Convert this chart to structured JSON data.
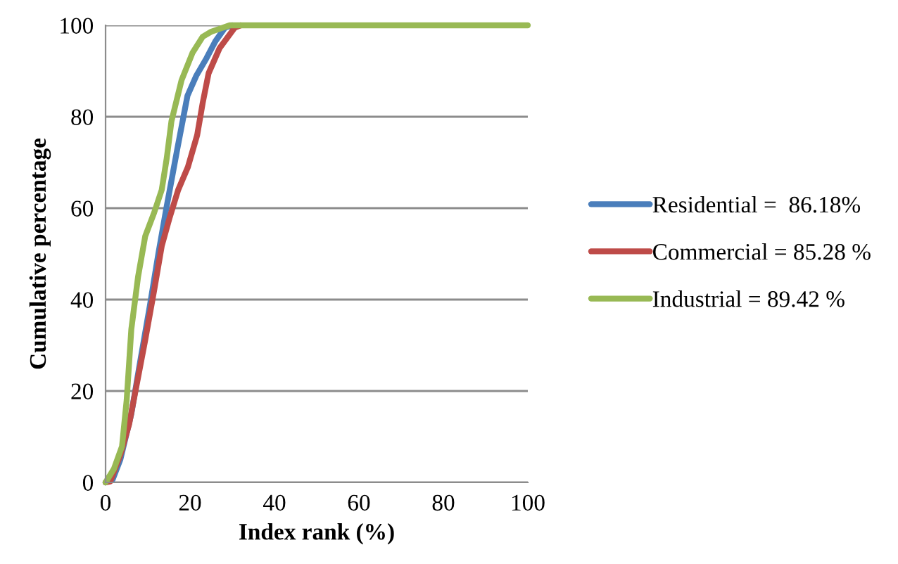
{
  "chart_data": {
    "type": "line",
    "xlabel": "Index rank (%)",
    "ylabel": "Cumulative percentage",
    "xlim": [
      0,
      100
    ],
    "xticks": [
      0,
      20,
      40,
      60,
      80,
      100
    ],
    "ylim": [
      0,
      100
    ],
    "yticks": [
      0,
      20,
      40,
      60,
      80,
      100
    ],
    "grid": "y",
    "legend": "right",
    "marker": "none",
    "line_style": "solid",
    "series": [
      {
        "name": "Residential =  86.18%",
        "color": "#4a7ebb",
        "x": [
          0,
          1.7,
          3.5,
          6.1,
          8.3,
          10.5,
          12.5,
          14.4,
          17,
          19.4,
          21.5,
          23.9,
          26,
          28.3,
          30
        ],
        "values": [
          0,
          0.7,
          5,
          15,
          27,
          38.7,
          50,
          60,
          73,
          84.6,
          89,
          92.8,
          96.5,
          99.5,
          100
        ]
      },
      {
        "name": "Commercial = 85.28 %",
        "color": "#be4b48",
        "x": [
          0,
          1.1,
          3.5,
          5.6,
          7.5,
          9.4,
          11.5,
          13.3,
          15.2,
          17.2,
          19.5,
          21.7,
          23,
          24.4,
          27,
          30.6,
          32
        ],
        "values": [
          0,
          0.2,
          6,
          12.8,
          22,
          31.2,
          42,
          51.7,
          58,
          64,
          69,
          76,
          83,
          89.5,
          95,
          99.5,
          100
        ]
      },
      {
        "name": "Industrial = 89.42 %",
        "color": "#98b954",
        "x": [
          0,
          2,
          3.9,
          5,
          6.1,
          7.7,
          9.4,
          11.5,
          13.3,
          14.5,
          15.6,
          18,
          20.6,
          23,
          25,
          29.4,
          40,
          60,
          80,
          100
        ],
        "values": [
          0,
          3,
          7.9,
          18,
          33.5,
          45,
          53.9,
          59,
          64,
          71,
          79,
          88,
          94,
          97.5,
          98.6,
          100,
          100,
          100,
          100,
          100
        ]
      }
    ]
  }
}
